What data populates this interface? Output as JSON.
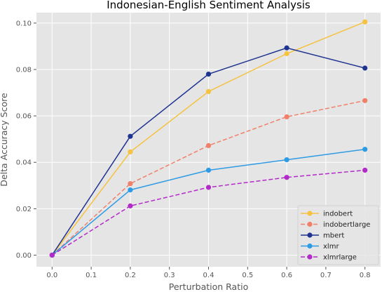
{
  "chart_data": {
    "type": "line",
    "title": "Indonesian-English Sentiment Analysis",
    "xlabel": "Perturbation Ratio",
    "ylabel": "Delta Accuracy Score",
    "xlim": [
      -0.04,
      0.84
    ],
    "ylim": [
      -0.005,
      0.1045
    ],
    "xticks": [
      0.0,
      0.1,
      0.2,
      0.3,
      0.4,
      0.5,
      0.6,
      0.7,
      0.8
    ],
    "xtick_labels": [
      "0.0",
      "0.1",
      "0.2",
      "0.3",
      "0.4",
      "0.5",
      "0.6",
      "0.7",
      "0.8"
    ],
    "yticks": [
      0.0,
      0.02,
      0.04,
      0.06,
      0.08,
      0.1
    ],
    "ytick_labels": [
      "0.00",
      "0.02",
      "0.04",
      "0.06",
      "0.08",
      "0.10"
    ],
    "grid": true,
    "legend_position": "lower-right",
    "x": [
      0.0,
      0.2,
      0.4,
      0.6,
      0.8
    ],
    "series": [
      {
        "name": "indobert",
        "values": [
          0.0,
          0.0445,
          0.0705,
          0.0868,
          0.1005
        ],
        "color": "#f5c242",
        "dashed": false
      },
      {
        "name": "indobertlarge",
        "values": [
          0.0,
          0.0308,
          0.0472,
          0.0596,
          0.0666
        ],
        "color": "#f0806a",
        "dashed": true
      },
      {
        "name": "mbert",
        "values": [
          0.0,
          0.0512,
          0.078,
          0.0893,
          0.0806
        ],
        "color": "#1f3390",
        "dashed": false
      },
      {
        "name": "xlmr",
        "values": [
          0.0,
          0.0281,
          0.0366,
          0.0411,
          0.0456
        ],
        "color": "#2e9be5",
        "dashed": false
      },
      {
        "name": "xlmrlarge",
        "values": [
          0.0,
          0.0212,
          0.0292,
          0.0335,
          0.0366
        ],
        "color": "#b22ac8",
        "dashed": true
      }
    ]
  }
}
